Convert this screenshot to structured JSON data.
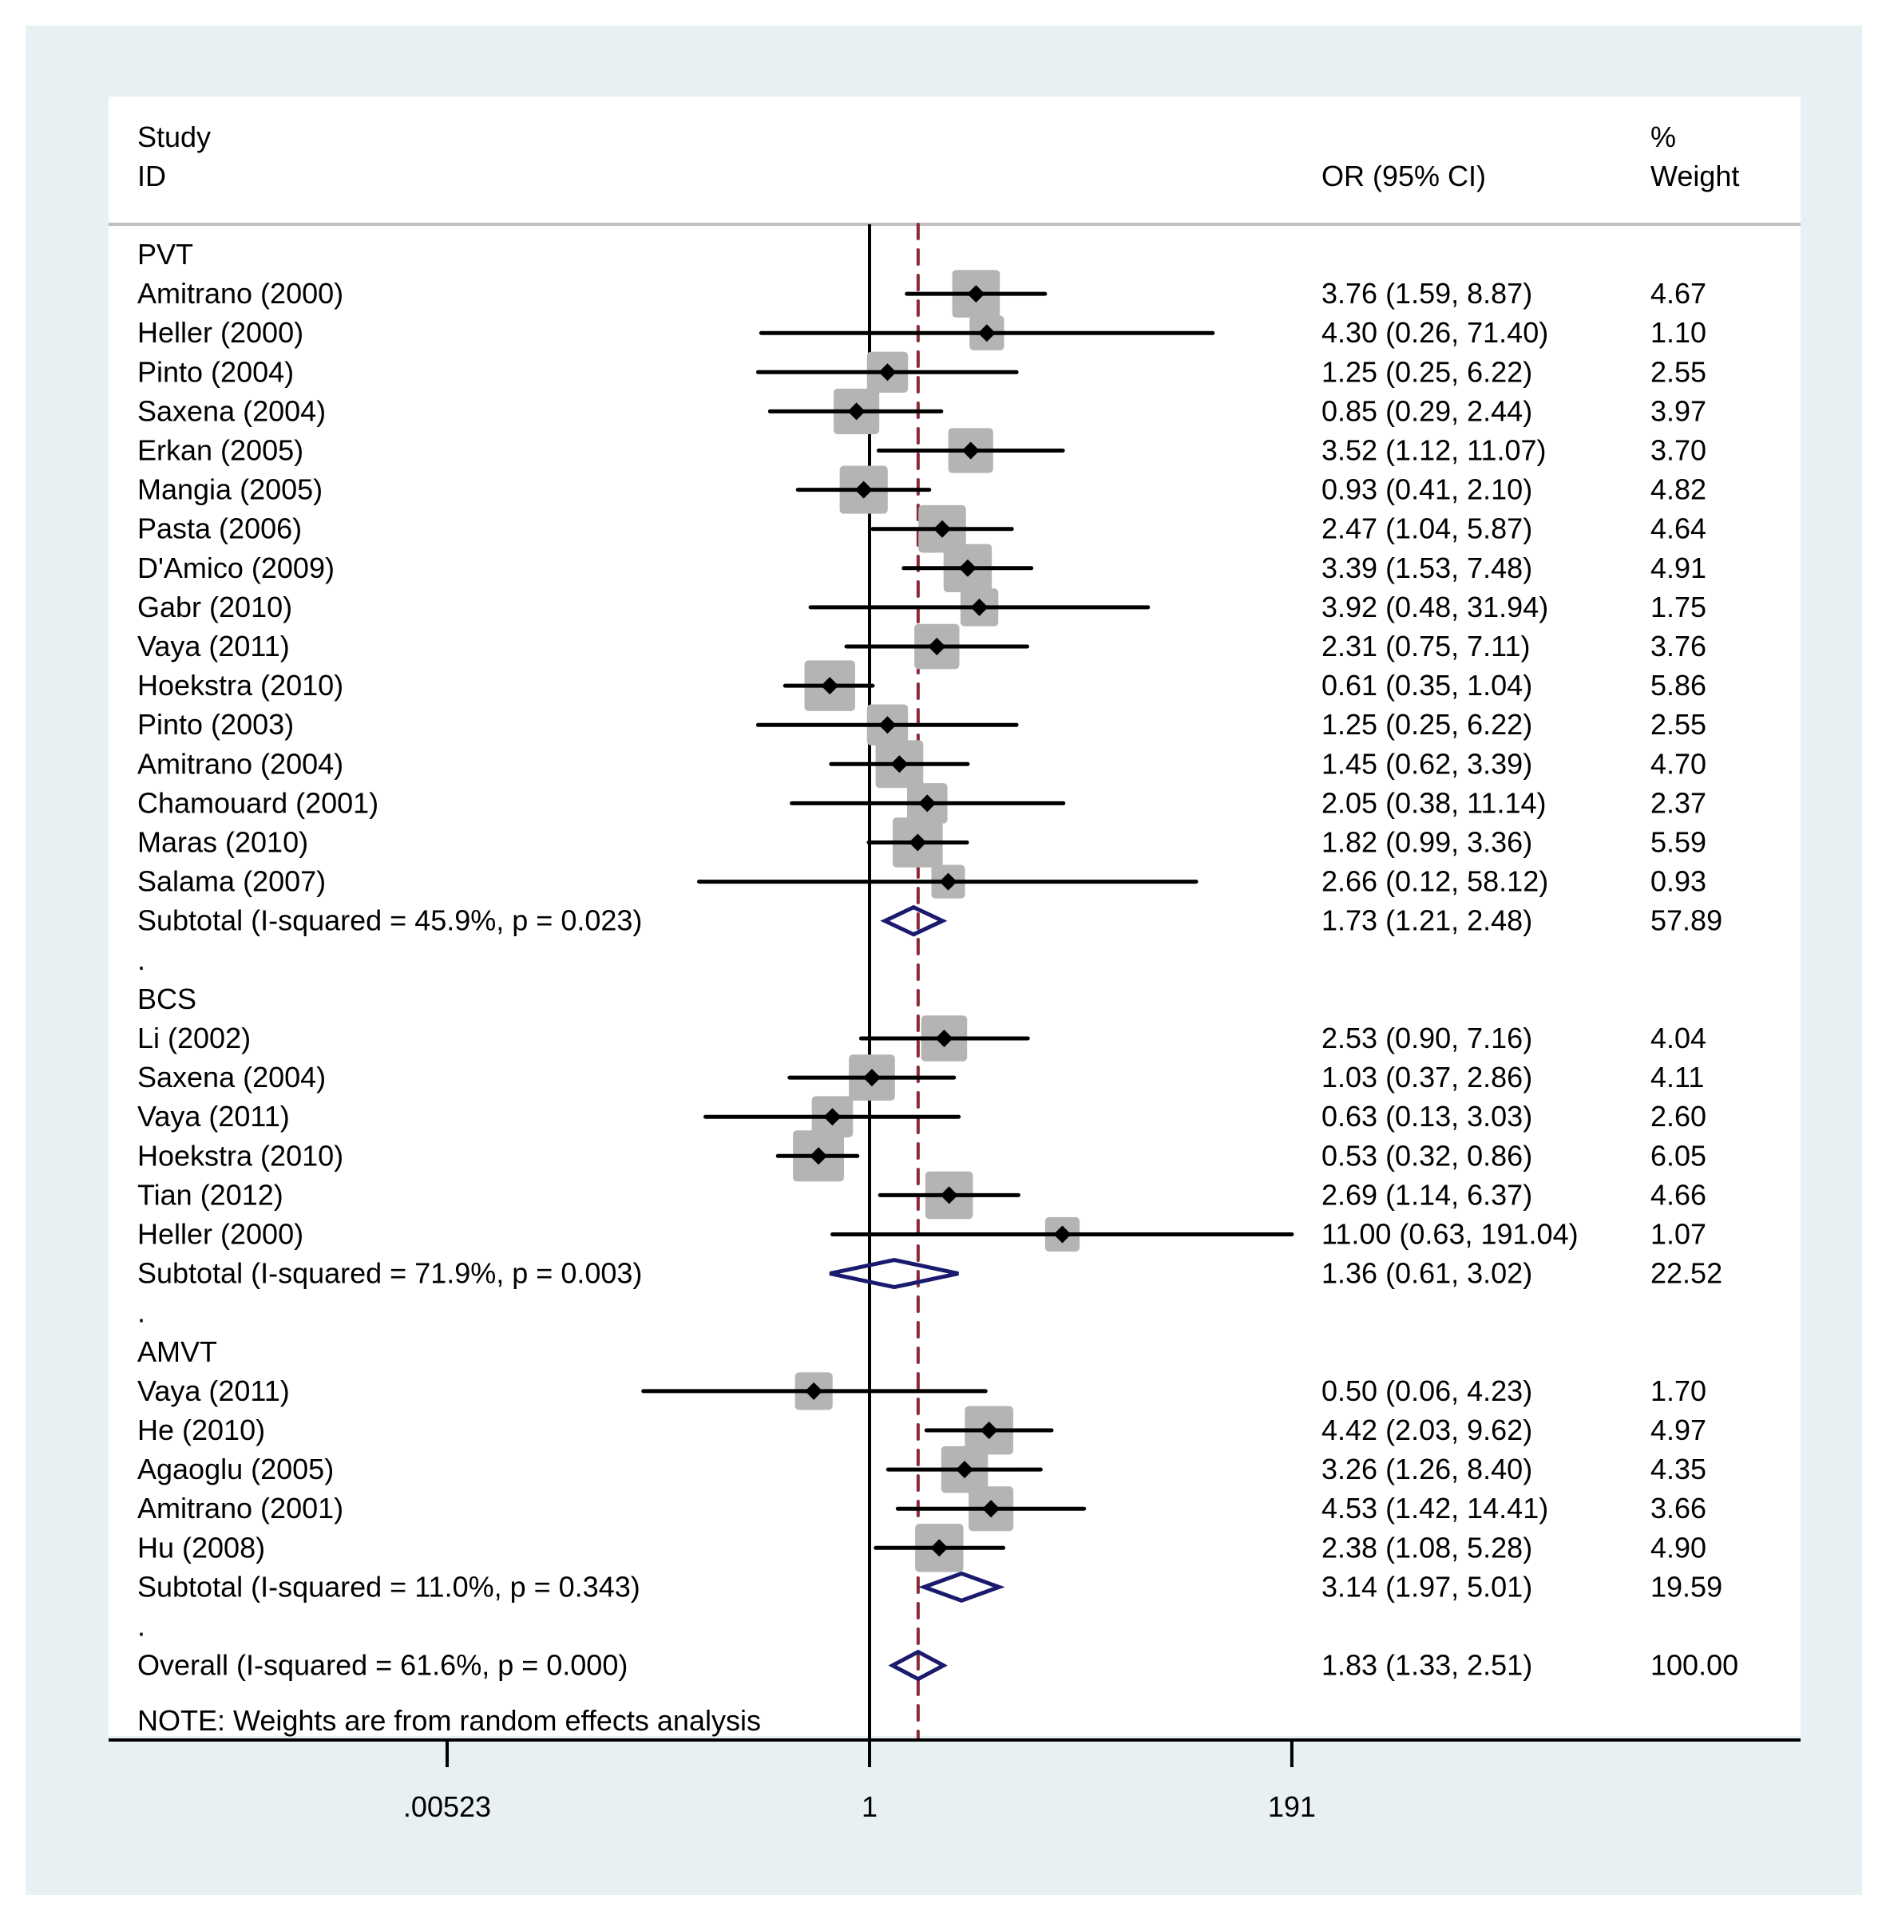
{
  "chart_data": {
    "type": "forest",
    "measure": "OR",
    "scale": "log",
    "header": {
      "study_line1": "Study",
      "study_line2": "ID",
      "effect_label": "OR (95% CI)",
      "weight_line1": "%",
      "weight_line2": "Weight"
    },
    "xaxis": {
      "ticks": [
        0.00523,
        1,
        191
      ],
      "tick_labels": [
        ".00523",
        "1",
        "191"
      ],
      "range": [
        0.00523,
        191
      ],
      "null_line": 1
    },
    "overall_line_value": 1.83,
    "note": "NOTE: Weights are from random effects analysis",
    "colors": {
      "background": "#e8f0f3",
      "plot_bg": "#ffffff",
      "weight_box": "#b4b4b4",
      "point": "#000000",
      "diamond": "#1a1a6e",
      "overall_line": "#8b2a35",
      "header_rule": "#c0c0c0"
    },
    "groups": [
      {
        "name": "PVT",
        "studies": [
          {
            "label": "Amitrano (2000)",
            "or": 3.76,
            "lo": 1.59,
            "hi": 8.87,
            "text": "3.76 (1.59, 8.87)",
            "weight": 4.67,
            "weight_text": "4.67"
          },
          {
            "label": "Heller (2000)",
            "or": 4.3,
            "lo": 0.26,
            "hi": 71.4,
            "text": "4.30 (0.26, 71.40)",
            "weight": 1.1,
            "weight_text": "1.10"
          },
          {
            "label": "Pinto (2004)",
            "or": 1.25,
            "lo": 0.25,
            "hi": 6.22,
            "text": "1.25 (0.25, 6.22)",
            "weight": 2.55,
            "weight_text": "2.55"
          },
          {
            "label": "Saxena (2004)",
            "or": 0.85,
            "lo": 0.29,
            "hi": 2.44,
            "text": "0.85 (0.29, 2.44)",
            "weight": 3.97,
            "weight_text": "3.97"
          },
          {
            "label": "Erkan (2005)",
            "or": 3.52,
            "lo": 1.12,
            "hi": 11.07,
            "text": "3.52 (1.12, 11.07)",
            "weight": 3.7,
            "weight_text": "3.70"
          },
          {
            "label": "Mangia (2005)",
            "or": 0.93,
            "lo": 0.41,
            "hi": 2.1,
            "text": "0.93 (0.41, 2.10)",
            "weight": 4.82,
            "weight_text": "4.82"
          },
          {
            "label": "Pasta (2006)",
            "or": 2.47,
            "lo": 1.04,
            "hi": 5.87,
            "text": "2.47 (1.04, 5.87)",
            "weight": 4.64,
            "weight_text": "4.64"
          },
          {
            "label": "D'Amico (2009)",
            "or": 3.39,
            "lo": 1.53,
            "hi": 7.48,
            "text": "3.39 (1.53, 7.48)",
            "weight": 4.91,
            "weight_text": "4.91"
          },
          {
            "label": "Gabr (2010)",
            "or": 3.92,
            "lo": 0.48,
            "hi": 31.94,
            "text": "3.92 (0.48, 31.94)",
            "weight": 1.75,
            "weight_text": "1.75"
          },
          {
            "label": "Vaya (2011)",
            "or": 2.31,
            "lo": 0.75,
            "hi": 7.11,
            "text": "2.31 (0.75, 7.11)",
            "weight": 3.76,
            "weight_text": "3.76"
          },
          {
            "label": "Hoekstra (2010)",
            "or": 0.61,
            "lo": 0.35,
            "hi": 1.04,
            "text": "0.61 (0.35, 1.04)",
            "weight": 5.86,
            "weight_text": "5.86"
          },
          {
            "label": "Pinto (2003)",
            "or": 1.25,
            "lo": 0.25,
            "hi": 6.22,
            "text": "1.25 (0.25, 6.22)",
            "weight": 2.55,
            "weight_text": "2.55"
          },
          {
            "label": "Amitrano (2004)",
            "or": 1.45,
            "lo": 0.62,
            "hi": 3.39,
            "text": "1.45 (0.62, 3.39)",
            "weight": 4.7,
            "weight_text": "4.70"
          },
          {
            "label": "Chamouard (2001)",
            "or": 2.05,
            "lo": 0.38,
            "hi": 11.14,
            "text": "2.05 (0.38, 11.14)",
            "weight": 2.37,
            "weight_text": "2.37"
          },
          {
            "label": "Maras (2010)",
            "or": 1.82,
            "lo": 0.99,
            "hi": 3.36,
            "text": "1.82 (0.99, 3.36)",
            "weight": 5.59,
            "weight_text": "5.59"
          },
          {
            "label": "Salama  (2007)",
            "or": 2.66,
            "lo": 0.12,
            "hi": 58.12,
            "text": "2.66 (0.12, 58.12)",
            "weight": 0.93,
            "weight_text": "0.93"
          }
        ],
        "subtotal": {
          "label": "Subtotal  (I-squared = 45.9%, p = 0.023)",
          "or": 1.73,
          "lo": 1.21,
          "hi": 2.48,
          "text": "1.73 (1.21, 2.48)",
          "weight": 57.89,
          "weight_text": "57.89"
        }
      },
      {
        "name": "BCS",
        "studies": [
          {
            "label": "Li (2002)",
            "or": 2.53,
            "lo": 0.9,
            "hi": 7.16,
            "text": "2.53 (0.90, 7.16)",
            "weight": 4.04,
            "weight_text": "4.04"
          },
          {
            "label": "Saxena (2004)",
            "or": 1.03,
            "lo": 0.37,
            "hi": 2.86,
            "text": "1.03 (0.37, 2.86)",
            "weight": 4.11,
            "weight_text": "4.11"
          },
          {
            "label": "Vaya (2011)",
            "or": 0.63,
            "lo": 0.13,
            "hi": 3.03,
            "text": "0.63 (0.13, 3.03)",
            "weight": 2.6,
            "weight_text": "2.60"
          },
          {
            "label": "Hoekstra (2010)",
            "or": 0.53,
            "lo": 0.32,
            "hi": 0.86,
            "text": "0.53 (0.32, 0.86)",
            "weight": 6.05,
            "weight_text": "6.05"
          },
          {
            "label": "Tian (2012)",
            "or": 2.69,
            "lo": 1.14,
            "hi": 6.37,
            "text": "2.69 (1.14, 6.37)",
            "weight": 4.66,
            "weight_text": "4.66"
          },
          {
            "label": "Heller (2000)",
            "or": 11.0,
            "lo": 0.63,
            "hi": 191.04,
            "text": "11.00 (0.63, 191.04)",
            "weight": 1.07,
            "weight_text": "1.07"
          }
        ],
        "subtotal": {
          "label": "Subtotal  (I-squared = 71.9%, p = 0.003)",
          "or": 1.36,
          "lo": 0.61,
          "hi": 3.02,
          "text": "1.36 (0.61, 3.02)",
          "weight": 22.52,
          "weight_text": "22.52"
        }
      },
      {
        "name": "AMVT",
        "studies": [
          {
            "label": "Vaya (2011)",
            "or": 0.5,
            "lo": 0.06,
            "hi": 4.23,
            "text": "0.50 (0.06, 4.23)",
            "weight": 1.7,
            "weight_text": "1.70"
          },
          {
            "label": "He (2010)",
            "or": 4.42,
            "lo": 2.03,
            "hi": 9.62,
            "text": "4.42 (2.03, 9.62)",
            "weight": 4.97,
            "weight_text": "4.97"
          },
          {
            "label": "Agaoglu (2005)",
            "or": 3.26,
            "lo": 1.26,
            "hi": 8.4,
            "text": "3.26 (1.26, 8.40)",
            "weight": 4.35,
            "weight_text": "4.35"
          },
          {
            "label": "Amitrano (2001)",
            "or": 4.53,
            "lo": 1.42,
            "hi": 14.41,
            "text": "4.53 (1.42, 14.41)",
            "weight": 3.66,
            "weight_text": "3.66"
          },
          {
            "label": "Hu (2008)",
            "or": 2.38,
            "lo": 1.08,
            "hi": 5.28,
            "text": "2.38 (1.08, 5.28)",
            "weight": 4.9,
            "weight_text": "4.90"
          }
        ],
        "subtotal": {
          "label": "Subtotal  (I-squared = 11.0%, p = 0.343)",
          "or": 3.14,
          "lo": 1.97,
          "hi": 5.01,
          "text": "3.14 (1.97, 5.01)",
          "weight": 19.59,
          "weight_text": "19.59"
        }
      }
    ],
    "separator": ".",
    "overall": {
      "label": "Overall  (I-squared = 61.6%, p = 0.000)",
      "or": 1.83,
      "lo": 1.33,
      "hi": 2.51,
      "text": "1.83 (1.33, 2.51)",
      "weight": 100.0,
      "weight_text": "100.00"
    }
  }
}
